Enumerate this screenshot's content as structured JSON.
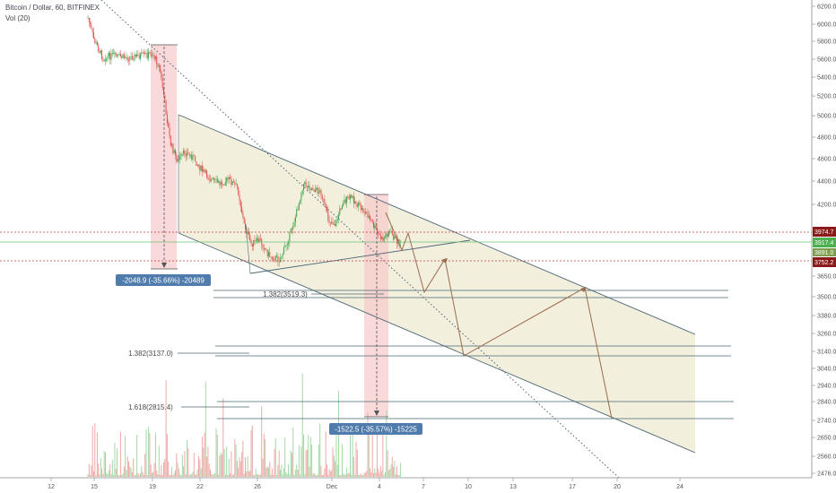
{
  "header": {
    "title": "Bitcoin / Dollar, 60, BITFINEX",
    "indicator": "Vol (20)"
  },
  "colors": {
    "up": "#3da64a",
    "down": "#e1524f",
    "channel_fill": "#efead1",
    "measure_fill": "#f6c9c9",
    "line": "#4a6675",
    "projection": "#9a6b4e",
    "badge": "#4f7cac",
    "price_hi": "#8b1a1a",
    "price_mid": "#4caf50",
    "price_lo": "#8b1a1a"
  },
  "chart_data": {
    "type": "candlestick",
    "y_axis": {
      "ticks": [
        "6200.0",
        "6000.0",
        "5800.0",
        "5600.0",
        "5400.0",
        "5200.0",
        "5000.0",
        "4800.0",
        "4600.0",
        "4400.0",
        "4200.0",
        "3650.0",
        "3500.0",
        "3380.0",
        "3260.0",
        "3140.0",
        "3040.0",
        "2940.0",
        "2840.0",
        "2740.0",
        "2650.0",
        "2560.0",
        "2476.0"
      ]
    },
    "x_axis": {
      "ticks": [
        "12",
        "15",
        "19",
        "22",
        "26",
        "Dec",
        "4",
        "7",
        "10",
        "13",
        "17",
        "20",
        "24"
      ]
    },
    "price_labels": {
      "high": "3974.7",
      "mid": "3917.4",
      "low": "3752.2",
      "low_sub": "3891.0"
    },
    "annotations": {
      "measure1": "-2048.9 (-35.66%) -20489",
      "measure2": "-1522.5 (-35.57%) -15225",
      "fib1": "1.382(3519.3)",
      "fib2": "1.382(3137.0)",
      "fib3": "1.618(2815.4)"
    }
  }
}
